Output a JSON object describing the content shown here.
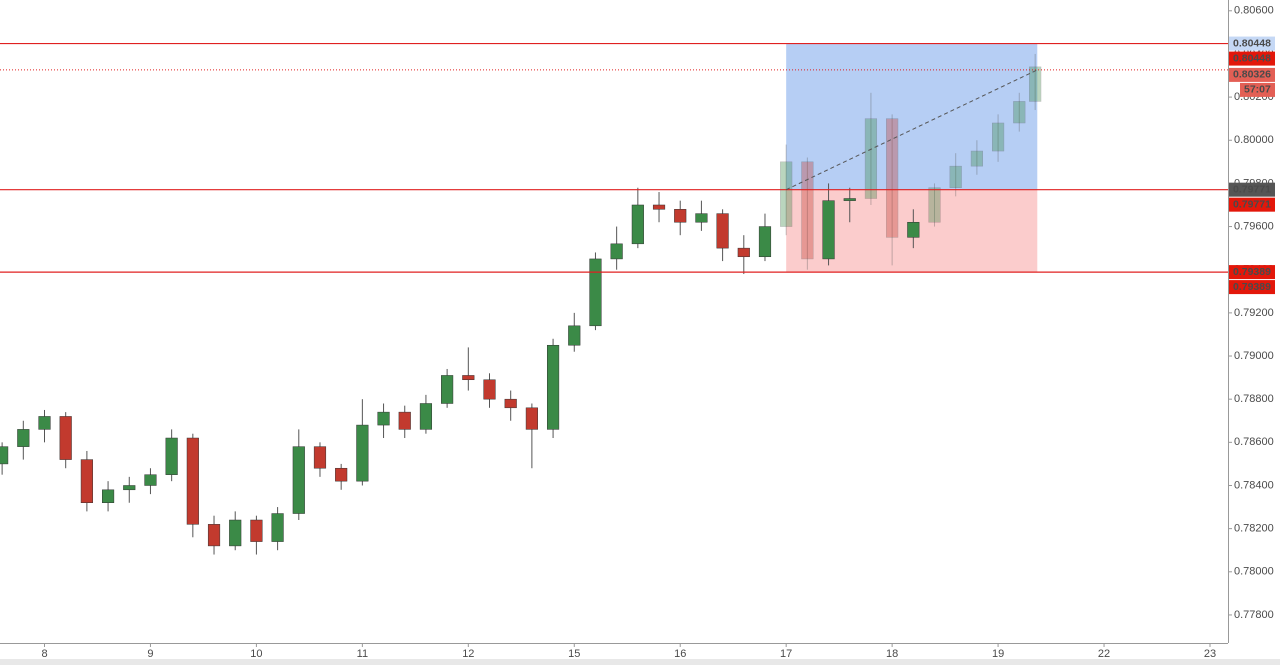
{
  "chart_data": {
    "type": "candlestick",
    "up_color": "#3b8a47",
    "down_color": "#c23a2e",
    "grid": true,
    "xlim": [
      -0.42,
      11.17
    ],
    "xticks": [
      {
        "value": 0,
        "label": "8"
      },
      {
        "value": 1,
        "label": "9"
      },
      {
        "value": 2,
        "label": "10"
      },
      {
        "value": 3,
        "label": "11"
      },
      {
        "value": 4,
        "label": "12"
      },
      {
        "value": 5,
        "label": "15"
      },
      {
        "value": 6,
        "label": "16"
      },
      {
        "value": 7,
        "label": "17"
      },
      {
        "value": 8,
        "label": "18"
      },
      {
        "value": 9,
        "label": "19"
      },
      {
        "value": 10,
        "label": "22"
      },
      {
        "value": 11,
        "label": "23"
      }
    ],
    "ylim": [
      0.7767,
      0.8065
    ],
    "yticks": [
      {
        "value": 0.806,
        "label": "0.80600"
      },
      {
        "value": 0.804,
        "label": "0.80400"
      },
      {
        "value": 0.802,
        "label": "0.80200"
      },
      {
        "value": 0.8,
        "label": "0.80000"
      },
      {
        "value": 0.798,
        "label": "0.79800"
      },
      {
        "value": 0.796,
        "label": "0.79600"
      },
      {
        "value": 0.794,
        "label": "0.79400"
      },
      {
        "value": 0.792,
        "label": "0.79200"
      },
      {
        "value": 0.79,
        "label": "0.79000"
      },
      {
        "value": 0.788,
        "label": "0.78800"
      },
      {
        "value": 0.786,
        "label": "0.78600"
      },
      {
        "value": 0.784,
        "label": "0.78400"
      },
      {
        "value": 0.782,
        "label": "0.78200"
      },
      {
        "value": 0.78,
        "label": "0.78000"
      },
      {
        "value": 0.778,
        "label": "0.77800"
      }
    ],
    "x": [
      -0.4,
      -0.2,
      0,
      0.2,
      0.4,
      0.6,
      0.8,
      1,
      1.2,
      1.4,
      1.6,
      1.8,
      2,
      2.2,
      2.4,
      2.6,
      2.8,
      3,
      3.2,
      3.4,
      3.6,
      3.8,
      4,
      4.2,
      4.4,
      4.6,
      4.8,
      5,
      5.2,
      5.4,
      5.6,
      5.8,
      6,
      6.2,
      6.4,
      6.6,
      6.8,
      7,
      7.2,
      7.4,
      7.6,
      7.8,
      8,
      8.2,
      8.4,
      8.6,
      8.8,
      9,
      9.2,
      9.35
    ],
    "open": [
      0.785,
      0.7858,
      0.7866,
      0.7872,
      0.7852,
      0.7832,
      0.7838,
      0.784,
      0.7845,
      0.7862,
      0.7822,
      0.7812,
      0.7824,
      0.7814,
      0.7827,
      0.7858,
      0.7848,
      0.7842,
      0.7868,
      0.7874,
      0.7866,
      0.7878,
      0.7891,
      0.7889,
      0.788,
      0.7876,
      0.7866,
      0.7905,
      0.7914,
      0.7945,
      0.7952,
      0.797,
      0.7968,
      0.7962,
      0.7966,
      0.795,
      0.7946,
      0.796,
      0.799,
      0.7945,
      0.7972,
      0.7973,
      0.801,
      0.7955,
      0.7962,
      0.7978,
      0.7988,
      0.7995,
      0.8008,
      0.8018
    ],
    "high": [
      0.786,
      0.787,
      0.7875,
      0.7874,
      0.7856,
      0.7842,
      0.7844,
      0.7848,
      0.7866,
      0.7864,
      0.7826,
      0.7828,
      0.7826,
      0.783,
      0.7866,
      0.786,
      0.785,
      0.788,
      0.7878,
      0.7877,
      0.7882,
      0.7894,
      0.7904,
      0.7892,
      0.7884,
      0.7878,
      0.7908,
      0.792,
      0.7948,
      0.796,
      0.7978,
      0.7976,
      0.7972,
      0.7972,
      0.7968,
      0.7956,
      0.7966,
      0.7998,
      0.7992,
      0.798,
      0.7978,
      0.8022,
      0.8012,
      0.7968,
      0.798,
      0.7994,
      0.8,
      0.8012,
      0.8022,
      0.804
    ],
    "low": [
      0.7845,
      0.7852,
      0.786,
      0.7848,
      0.7828,
      0.7828,
      0.7832,
      0.7836,
      0.7842,
      0.7816,
      0.7808,
      0.781,
      0.7808,
      0.781,
      0.7824,
      0.7844,
      0.7838,
      0.784,
      0.7862,
      0.7862,
      0.7864,
      0.7876,
      0.7884,
      0.7876,
      0.787,
      0.7848,
      0.7862,
      0.7902,
      0.7912,
      0.794,
      0.795,
      0.7962,
      0.7956,
      0.7958,
      0.7944,
      0.7938,
      0.7944,
      0.7956,
      0.794,
      0.7942,
      0.7962,
      0.797,
      0.7942,
      0.795,
      0.796,
      0.7974,
      0.7984,
      0.799,
      0.8004,
      0.8014
    ],
    "close": [
      0.7858,
      0.7866,
      0.7872,
      0.7852,
      0.7832,
      0.7838,
      0.784,
      0.7845,
      0.7862,
      0.7822,
      0.7812,
      0.7824,
      0.7814,
      0.7827,
      0.7858,
      0.7848,
      0.7842,
      0.7868,
      0.7874,
      0.7866,
      0.7878,
      0.7891,
      0.7889,
      0.788,
      0.7876,
      0.7866,
      0.7905,
      0.7914,
      0.7945,
      0.7952,
      0.797,
      0.7968,
      0.7962,
      0.7966,
      0.795,
      0.7946,
      0.796,
      0.799,
      0.7945,
      0.7972,
      0.7973,
      0.801,
      0.7955,
      0.7962,
      0.7978,
      0.7988,
      0.7995,
      0.8008,
      0.8018,
      0.8034
    ],
    "position": {
      "x_start": 7.0,
      "x_end": 9.37,
      "target": {
        "value": 0.80448,
        "label": "0.80448"
      },
      "entry": {
        "value": 0.79771,
        "label": "0.79771"
      },
      "stop": {
        "value": 0.79389,
        "label": "0.79389"
      }
    },
    "last_price": {
      "value": 0.80326,
      "label": "0.80326"
    },
    "countdown": "57:07"
  }
}
